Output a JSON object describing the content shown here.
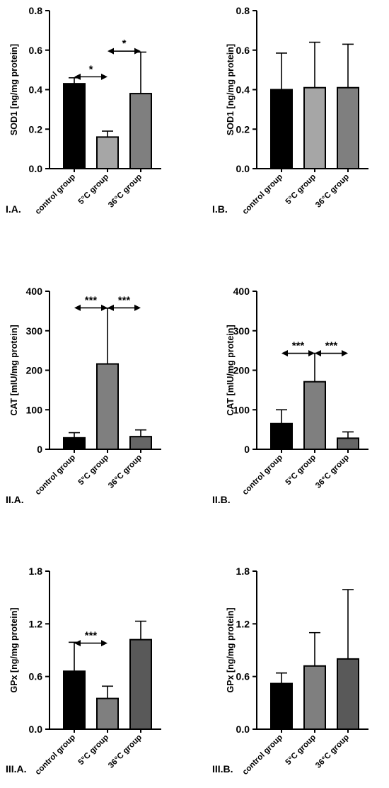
{
  "chart_data": [
    {
      "type": "bar",
      "panel_label": "I.A.",
      "ylabel": "SOD1  [ng/mg protein]",
      "ylim": [
        0,
        0.8
      ],
      "yticks": [
        "0.0",
        "0.2",
        "0.4",
        "0.6",
        "0.8"
      ],
      "ytick_values": [
        0,
        0.2,
        0.4,
        0.6,
        0.8
      ],
      "categories": [
        "control group",
        "5°C group",
        "36°C group"
      ],
      "values": [
        0.43,
        0.16,
        0.38
      ],
      "errors": [
        0.03,
        0.03,
        0.21
      ],
      "colors": [
        "#000000",
        "#a6a6a6",
        "#7f7f7f"
      ],
      "significance": [
        {
          "from": 0,
          "to": 1,
          "label": "*",
          "y": 0.465
        },
        {
          "from": 1,
          "to": 2,
          "label": "*",
          "y": 0.595
        }
      ]
    },
    {
      "type": "bar",
      "panel_label": "I.B.",
      "ylabel": "SOD1  [ng/mg protein]",
      "ylim": [
        0,
        0.8
      ],
      "yticks": [
        "0.0",
        "0.2",
        "0.4",
        "0.6",
        "0.8"
      ],
      "ytick_values": [
        0,
        0.2,
        0.4,
        0.6,
        0.8
      ],
      "categories": [
        "control group",
        "5°C group",
        "36°C group"
      ],
      "values": [
        0.4,
        0.41,
        0.41
      ],
      "errors": [
        0.185,
        0.23,
        0.22
      ],
      "colors": [
        "#000000",
        "#a6a6a6",
        "#7f7f7f"
      ],
      "significance": []
    },
    {
      "type": "bar",
      "panel_label": "II.A.",
      "ylabel": "CAT  [mIU/mg protein]",
      "ylim": [
        0,
        400
      ],
      "yticks": [
        "0",
        "100",
        "200",
        "300",
        "400"
      ],
      "ytick_values": [
        0,
        100,
        200,
        300,
        400
      ],
      "categories": [
        "control group",
        "5°C group",
        "36°C group"
      ],
      "values": [
        29,
        216,
        32
      ],
      "errors": [
        13,
        141,
        17
      ],
      "colors": [
        "#000000",
        "#7f7f7f",
        "#666666"
      ],
      "significance": [
        {
          "from": 0,
          "to": 1,
          "label": "***",
          "y": 358
        },
        {
          "from": 1,
          "to": 2,
          "label": "***",
          "y": 358
        }
      ]
    },
    {
      "type": "bar",
      "panel_label": "II.B.",
      "ylabel": "CAT  [mIU/mg protein]",
      "ylim": [
        0,
        400
      ],
      "yticks": [
        "0",
        "100",
        "200",
        "300",
        "400"
      ],
      "ytick_values": [
        0,
        100,
        200,
        300,
        400
      ],
      "categories": [
        "control group",
        "5°C group",
        "36°C group"
      ],
      "values": [
        65,
        171,
        28
      ],
      "errors": [
        35,
        72,
        16
      ],
      "colors": [
        "#000000",
        "#7f7f7f",
        "#666666"
      ],
      "significance": [
        {
          "from": 0,
          "to": 1,
          "label": "***",
          "y": 243
        },
        {
          "from": 1,
          "to": 2,
          "label": "***",
          "y": 243
        }
      ]
    },
    {
      "type": "bar",
      "panel_label": "III.A.",
      "ylabel": "GPx [ng/mg protein]",
      "ylim": [
        0,
        1.8
      ],
      "yticks": [
        "0.0",
        "0.6",
        "1.2",
        "1.8"
      ],
      "ytick_values": [
        0,
        0.6,
        1.2,
        1.8
      ],
      "categories": [
        "control group",
        "5°C group",
        "36°C group"
      ],
      "values": [
        0.66,
        0.35,
        1.02
      ],
      "errors": [
        0.33,
        0.14,
        0.21
      ],
      "colors": [
        "#000000",
        "#7f7f7f",
        "#595959"
      ],
      "significance": [
        {
          "from": 0,
          "to": 1,
          "label": "***",
          "y": 0.98
        }
      ]
    },
    {
      "type": "bar",
      "panel_label": "III.B.",
      "ylabel": "GPx [ng/mg protein]",
      "ylim": [
        0,
        1.8
      ],
      "yticks": [
        "0.0",
        "0.6",
        "1.2",
        "1.8"
      ],
      "ytick_values": [
        0,
        0.6,
        1.2,
        1.8
      ],
      "categories": [
        "control group",
        "5°C group",
        "36°C group"
      ],
      "values": [
        0.52,
        0.72,
        0.8
      ],
      "errors": [
        0.12,
        0.38,
        0.79
      ],
      "colors": [
        "#000000",
        "#7f7f7f",
        "#595959"
      ],
      "significance": []
    }
  ]
}
